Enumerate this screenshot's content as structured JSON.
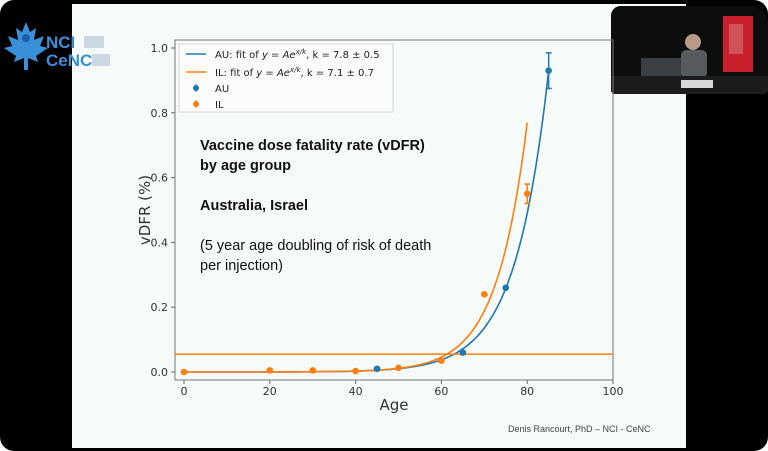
{
  "logo": {
    "line1": "NCI",
    "line2": "CeNC"
  },
  "credit": "Denis Rancourt, PhD  –  NCI - CeNC",
  "annotation": {
    "title_line1": "Vaccine dose fatality rate (vDFR)",
    "title_line2": "by age group",
    "countries": "Australia, Israel",
    "note_line1": "(5 year age doubling of risk of death",
    "note_line2": "per injection)"
  },
  "legend": {
    "au_fit": "AU: fit of y = Ae^(x/k), k = 7.8 ± 0.5",
    "au_fit_prefix": "AU: fit of ",
    "il_fit_prefix": "IL: fit of ",
    "fit_eq": "y = Ae",
    "fit_exp": "x/k",
    "au_k": ", k = 7.8 ± 0.5",
    "il_k": ", k = 7.1 ± 0.7",
    "au_points": "AU",
    "il_points": "IL"
  },
  "colors": {
    "au": "#1f77b4",
    "il": "#ff7f0e",
    "axis": "#555555",
    "bg": "#f6faf8"
  },
  "chart_data": {
    "type": "scatter",
    "title": "",
    "xlabel": "Age",
    "ylabel": "vDFR (%)",
    "xlim": [
      0,
      100
    ],
    "ylim": [
      0,
      1.0
    ],
    "xticks": [
      0,
      20,
      40,
      60,
      80,
      100
    ],
    "yticks": [
      0.0,
      0.2,
      0.4,
      0.6,
      0.8,
      1.0
    ],
    "ytick_labels": [
      "0.0",
      "0.2",
      "0.4",
      "0.6",
      "0.8",
      "1.0"
    ],
    "grid": false,
    "legend_position": "upper left",
    "series": [
      {
        "name": "AU",
        "kind": "points",
        "color": "#1f77b4",
        "x": [
          45,
          65,
          75,
          85
        ],
        "y": [
          0.01,
          0.06,
          0.26,
          0.93
        ],
        "yerr": [
          0,
          0,
          0,
          0.055
        ]
      },
      {
        "name": "IL",
        "kind": "points",
        "color": "#ff7f0e",
        "x": [
          0,
          20,
          30,
          40,
          50,
          60,
          70,
          80
        ],
        "y": [
          0.0,
          0.005,
          0.005,
          0.003,
          0.013,
          0.035,
          0.24,
          0.55
        ],
        "yerr": [
          0,
          0,
          0,
          0,
          0,
          0,
          0,
          0.03
        ]
      },
      {
        "name": "AU: fit of y=Ae^(x/k), k=7.8±0.5",
        "kind": "fit",
        "color": "#1f77b4",
        "k": 7.8,
        "x_range": [
          0,
          85
        ],
        "y_at_85": 0.93
      },
      {
        "name": "IL: fit of y=Ae^(x/k), k=7.1±0.7",
        "kind": "fit",
        "color": "#ff7f0e",
        "k": 7.1,
        "x_range": [
          0,
          80
        ],
        "y_at_80": 0.77
      },
      {
        "name": "baseline",
        "kind": "hline",
        "color": "#ff7f0e",
        "y": 0.055
      }
    ]
  }
}
